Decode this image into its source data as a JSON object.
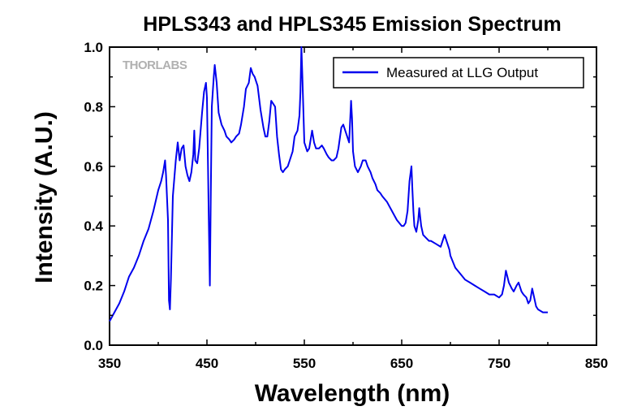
{
  "chart_data": {
    "type": "line",
    "title": "HPLS343 and HPLS345 Emission Spectrum",
    "xlabel": "Wavelength (nm)",
    "ylabel": "Intensity (A.U.)",
    "xlim": [
      350,
      850
    ],
    "ylim": [
      0.0,
      1.0
    ],
    "xticks": [
      350,
      450,
      550,
      650,
      750,
      850
    ],
    "yticks": [
      "0.0",
      "0.2",
      "0.4",
      "0.6",
      "0.8",
      "1.0"
    ],
    "grid": false,
    "legend_position": "top-right",
    "logo": "THORLABS",
    "series": [
      {
        "name": "Measured at LLG Output",
        "color": "#0000ee",
        "x": [
          350,
          355,
          360,
          365,
          370,
          375,
          380,
          385,
          390,
          395,
          400,
          403,
          405,
          407,
          408,
          410,
          411,
          412,
          413,
          415,
          418,
          420,
          422,
          424,
          426,
          428,
          430,
          432,
          434,
          435,
          436,
          437,
          438,
          440,
          442,
          445,
          447,
          449,
          450,
          451,
          452,
          453,
          454,
          455,
          457,
          458,
          460,
          462,
          465,
          468,
          470,
          473,
          475,
          478,
          480,
          483,
          485,
          488,
          490,
          493,
          495,
          497,
          499,
          500,
          502,
          505,
          508,
          510,
          512,
          514,
          516,
          518,
          520,
          522,
          524,
          526,
          528,
          530,
          533,
          535,
          538,
          540,
          543,
          545,
          546,
          547,
          548,
          550,
          553,
          555,
          558,
          560,
          562,
          565,
          568,
          570,
          573,
          575,
          578,
          580,
          583,
          585,
          588,
          590,
          592,
          594,
          596,
          597,
          598,
          599,
          600,
          602,
          605,
          608,
          610,
          613,
          615,
          618,
          620,
          623,
          625,
          628,
          630,
          635,
          640,
          645,
          650,
          652,
          654,
          656,
          658,
          660,
          661,
          662,
          663,
          665,
          667,
          668,
          670,
          672,
          675,
          678,
          680,
          685,
          690,
          692,
          694,
          695,
          697,
          699,
          700,
          705,
          710,
          715,
          720,
          725,
          730,
          735,
          740,
          745,
          750,
          753,
          755,
          757,
          760,
          763,
          765,
          768,
          770,
          773,
          775,
          778,
          780,
          782,
          784,
          786,
          788,
          790,
          795,
          800
        ],
        "values": [
          0.08,
          0.11,
          0.14,
          0.18,
          0.23,
          0.26,
          0.3,
          0.35,
          0.39,
          0.45,
          0.52,
          0.55,
          0.58,
          0.62,
          0.57,
          0.42,
          0.15,
          0.12,
          0.22,
          0.5,
          0.62,
          0.68,
          0.62,
          0.66,
          0.67,
          0.6,
          0.57,
          0.55,
          0.58,
          0.61,
          0.64,
          0.72,
          0.62,
          0.61,
          0.66,
          0.78,
          0.85,
          0.88,
          0.83,
          0.62,
          0.4,
          0.2,
          0.52,
          0.8,
          0.9,
          0.94,
          0.88,
          0.78,
          0.74,
          0.72,
          0.7,
          0.69,
          0.68,
          0.69,
          0.7,
          0.71,
          0.74,
          0.8,
          0.86,
          0.88,
          0.93,
          0.91,
          0.9,
          0.89,
          0.87,
          0.79,
          0.73,
          0.7,
          0.7,
          0.75,
          0.82,
          0.81,
          0.8,
          0.7,
          0.64,
          0.59,
          0.58,
          0.59,
          0.6,
          0.62,
          0.65,
          0.7,
          0.72,
          0.77,
          0.85,
          1.0,
          0.9,
          0.68,
          0.65,
          0.66,
          0.72,
          0.68,
          0.66,
          0.66,
          0.67,
          0.66,
          0.64,
          0.63,
          0.62,
          0.62,
          0.63,
          0.66,
          0.73,
          0.74,
          0.72,
          0.7,
          0.68,
          0.75,
          0.82,
          0.76,
          0.65,
          0.6,
          0.58,
          0.6,
          0.62,
          0.62,
          0.6,
          0.58,
          0.56,
          0.54,
          0.52,
          0.51,
          0.5,
          0.48,
          0.45,
          0.42,
          0.4,
          0.4,
          0.41,
          0.45,
          0.55,
          0.6,
          0.52,
          0.45,
          0.4,
          0.38,
          0.42,
          0.46,
          0.4,
          0.37,
          0.36,
          0.35,
          0.35,
          0.34,
          0.33,
          0.35,
          0.37,
          0.36,
          0.34,
          0.32,
          0.3,
          0.26,
          0.24,
          0.22,
          0.21,
          0.2,
          0.19,
          0.18,
          0.17,
          0.17,
          0.16,
          0.17,
          0.2,
          0.25,
          0.21,
          0.19,
          0.18,
          0.2,
          0.21,
          0.18,
          0.17,
          0.16,
          0.14,
          0.15,
          0.19,
          0.16,
          0.13,
          0.12,
          0.11,
          0.11
        ]
      }
    ]
  }
}
